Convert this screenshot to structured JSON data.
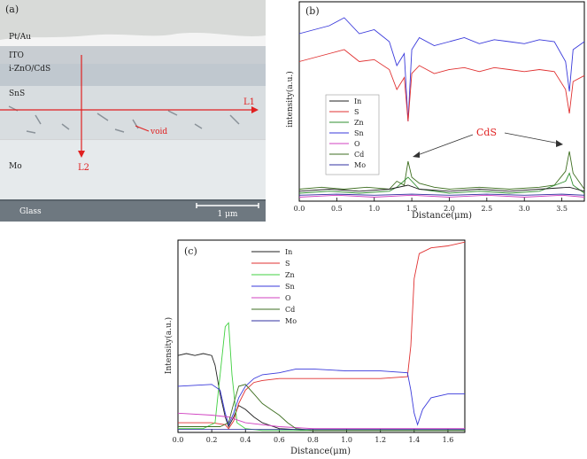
{
  "panel_a": {
    "label": "(a)",
    "layers": [
      "Pt/Au",
      "ITO",
      "i-ZnO/CdS",
      "SnS",
      "Mo",
      "Glass"
    ],
    "line_h": "L1",
    "line_v": "L2",
    "void_label": "void",
    "scalebar": "1 μm"
  },
  "chart_data": [
    {
      "type": "line",
      "panel": "(b)",
      "xlabel": "Distance(μm)",
      "ylabel": "intensity(a.u.)",
      "xlim": [
        0,
        3.8
      ],
      "xticks": [
        "0.0",
        "0.5",
        "1.0",
        "1.5",
        "2.0",
        "2.5",
        "3.0",
        "3.5"
      ],
      "legend": [
        "In",
        "S",
        "Zn",
        "Sn",
        "O",
        "Cd",
        "Mo"
      ],
      "annotation": "CdS",
      "series": [
        {
          "name": "Sn",
          "color": "#3a3adb",
          "x": [
            0,
            0.2,
            0.4,
            0.6,
            0.8,
            1.0,
            1.2,
            1.3,
            1.4,
            1.45,
            1.5,
            1.6,
            1.8,
            2.0,
            2.2,
            2.4,
            2.6,
            2.8,
            3.0,
            3.2,
            3.4,
            3.55,
            3.6,
            3.65,
            3.8
          ],
          "y": [
            0.84,
            0.86,
            0.88,
            0.92,
            0.84,
            0.86,
            0.8,
            0.68,
            0.74,
            0.4,
            0.76,
            0.82,
            0.78,
            0.8,
            0.82,
            0.79,
            0.81,
            0.8,
            0.79,
            0.81,
            0.8,
            0.7,
            0.55,
            0.76,
            0.8
          ]
        },
        {
          "name": "S",
          "color": "#e03030",
          "x": [
            0,
            0.2,
            0.4,
            0.6,
            0.8,
            1.0,
            1.2,
            1.3,
            1.4,
            1.45,
            1.5,
            1.6,
            1.8,
            2.0,
            2.2,
            2.4,
            2.6,
            2.8,
            3.0,
            3.2,
            3.4,
            3.55,
            3.6,
            3.65,
            3.8
          ],
          "y": [
            0.7,
            0.72,
            0.74,
            0.76,
            0.7,
            0.71,
            0.66,
            0.56,
            0.62,
            0.4,
            0.64,
            0.68,
            0.64,
            0.66,
            0.67,
            0.65,
            0.67,
            0.66,
            0.65,
            0.66,
            0.65,
            0.56,
            0.44,
            0.6,
            0.63
          ]
        },
        {
          "name": "Cd",
          "color": "#3e6e20",
          "x": [
            0,
            0.3,
            0.6,
            0.9,
            1.2,
            1.3,
            1.4,
            1.45,
            1.5,
            1.6,
            1.8,
            2.0,
            2.4,
            2.8,
            3.2,
            3.4,
            3.55,
            3.6,
            3.65,
            3.8
          ],
          "y": [
            0.06,
            0.07,
            0.06,
            0.07,
            0.06,
            0.1,
            0.08,
            0.2,
            0.12,
            0.09,
            0.07,
            0.06,
            0.07,
            0.06,
            0.07,
            0.08,
            0.15,
            0.25,
            0.14,
            0.06
          ]
        },
        {
          "name": "Zn",
          "color": "#2f8f2f",
          "x": [
            0,
            0.4,
            0.8,
            1.2,
            1.3,
            1.45,
            1.6,
            2.0,
            2.4,
            2.8,
            3.2,
            3.55,
            3.6,
            3.65,
            3.8
          ],
          "y": [
            0.04,
            0.05,
            0.04,
            0.05,
            0.07,
            0.12,
            0.06,
            0.04,
            0.05,
            0.04,
            0.05,
            0.1,
            0.14,
            0.08,
            0.04
          ]
        },
        {
          "name": "In",
          "color": "#202020",
          "x": [
            0,
            0.4,
            0.8,
            1.2,
            1.45,
            1.6,
            2.0,
            2.4,
            2.8,
            3.2,
            3.6,
            3.8
          ],
          "y": [
            0.05,
            0.06,
            0.05,
            0.06,
            0.08,
            0.06,
            0.05,
            0.06,
            0.05,
            0.06,
            0.07,
            0.05
          ]
        },
        {
          "name": "O",
          "color": "#d040c0",
          "x": [
            0,
            0.5,
            1.0,
            1.5,
            2.0,
            2.5,
            3.0,
            3.5,
            3.8
          ],
          "y": [
            0.02,
            0.03,
            0.02,
            0.03,
            0.02,
            0.03,
            0.02,
            0.03,
            0.02
          ]
        },
        {
          "name": "Mo",
          "color": "#3030a0",
          "x": [
            0,
            0.5,
            1.0,
            1.5,
            2.0,
            2.5,
            3.0,
            3.5,
            3.8
          ],
          "y": [
            0.03,
            0.035,
            0.03,
            0.035,
            0.03,
            0.035,
            0.03,
            0.035,
            0.03
          ]
        }
      ]
    },
    {
      "type": "line",
      "panel": "(c)",
      "xlabel": "Distance(μm)",
      "ylabel": "Intensity(a.u.)",
      "xlim": [
        0,
        1.7
      ],
      "xticks": [
        "0.0",
        "0.2",
        "0.4",
        "0.6",
        "0.8",
        "1.0",
        "1.2",
        "1.4",
        "1.6"
      ],
      "legend": [
        "In",
        "S",
        "Zn",
        "Sn",
        "O",
        "Cd",
        "Mo"
      ],
      "series": [
        {
          "name": "In",
          "color": "#202020",
          "x": [
            0,
            0.05,
            0.1,
            0.15,
            0.2,
            0.22,
            0.25,
            0.28,
            0.3,
            0.33,
            0.36,
            0.4,
            0.45,
            0.5,
            0.6,
            0.8,
            1.0,
            1.2,
            1.4,
            1.7
          ],
          "y": [
            0.4,
            0.41,
            0.4,
            0.41,
            0.4,
            0.35,
            0.2,
            0.08,
            0.03,
            0.08,
            0.14,
            0.12,
            0.08,
            0.05,
            0.02,
            0.01,
            0.01,
            0.01,
            0.01,
            0.01
          ]
        },
        {
          "name": "S",
          "color": "#e03030",
          "x": [
            0,
            0.2,
            0.28,
            0.3,
            0.33,
            0.36,
            0.4,
            0.45,
            0.5,
            0.6,
            0.8,
            1.0,
            1.2,
            1.36,
            1.38,
            1.4,
            1.43,
            1.5,
            1.6,
            1.7
          ],
          "y": [
            0.05,
            0.05,
            0.04,
            0.02,
            0.06,
            0.15,
            0.22,
            0.26,
            0.27,
            0.28,
            0.28,
            0.28,
            0.28,
            0.29,
            0.45,
            0.8,
            0.93,
            0.96,
            0.97,
            0.99
          ]
        },
        {
          "name": "Zn",
          "color": "#40d040",
          "x": [
            0,
            0.15,
            0.22,
            0.25,
            0.28,
            0.3,
            0.32,
            0.35,
            0.4,
            0.5,
            0.8,
            1.2,
            1.7
          ],
          "y": [
            0.02,
            0.02,
            0.05,
            0.3,
            0.55,
            0.57,
            0.3,
            0.05,
            0.02,
            0.01,
            0.01,
            0.01,
            0.01
          ]
        },
        {
          "name": "Sn",
          "color": "#3a3adb",
          "x": [
            0,
            0.2,
            0.25,
            0.28,
            0.3,
            0.33,
            0.36,
            0.4,
            0.45,
            0.5,
            0.6,
            0.7,
            0.8,
            1.0,
            1.2,
            1.36,
            1.38,
            1.4,
            1.42,
            1.45,
            1.5,
            1.6,
            1.7
          ],
          "y": [
            0.24,
            0.25,
            0.22,
            0.1,
            0.04,
            0.1,
            0.18,
            0.24,
            0.28,
            0.3,
            0.31,
            0.33,
            0.33,
            0.32,
            0.32,
            0.31,
            0.22,
            0.1,
            0.04,
            0.12,
            0.18,
            0.2,
            0.2
          ]
        },
        {
          "name": "O",
          "color": "#d040c0",
          "x": [
            0,
            0.2,
            0.3,
            0.4,
            0.6,
            0.8,
            1.0,
            1.2,
            1.4,
            1.7
          ],
          "y": [
            0.1,
            0.09,
            0.08,
            0.05,
            0.03,
            0.02,
            0.02,
            0.02,
            0.02,
            0.02
          ]
        },
        {
          "name": "Cd",
          "color": "#3e6e20",
          "x": [
            0,
            0.25,
            0.3,
            0.33,
            0.36,
            0.4,
            0.45,
            0.5,
            0.55,
            0.6,
            0.65,
            0.7,
            0.8,
            1.0,
            1.2,
            1.7
          ],
          "y": [
            0.03,
            0.03,
            0.05,
            0.15,
            0.24,
            0.25,
            0.2,
            0.15,
            0.12,
            0.09,
            0.05,
            0.02,
            0.01,
            0.01,
            0.01,
            0.01
          ]
        },
        {
          "name": "Mo",
          "color": "#3030a0",
          "x": [
            0,
            0.3,
            0.6,
            0.9,
            1.2,
            1.5,
            1.7
          ],
          "y": [
            0.015,
            0.015,
            0.015,
            0.015,
            0.015,
            0.015,
            0.015
          ]
        }
      ]
    }
  ]
}
